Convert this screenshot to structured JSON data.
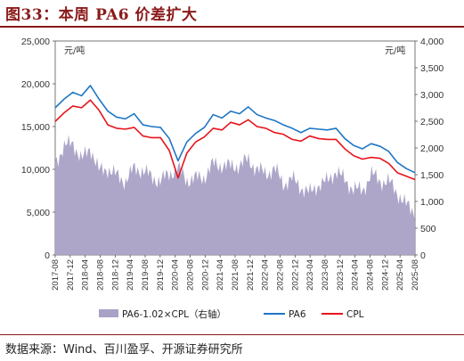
{
  "title": "图33：本周 PA6 价差扩大",
  "source": "数据来源：Wind、百川盈孚、开源证券研究所",
  "chart_data": {
    "type": "line",
    "left_unit": "元/吨",
    "right_unit": "元/吨",
    "left_ylim": [
      0,
      25000
    ],
    "right_ylim": [
      0,
      4000
    ],
    "left_ticks": [
      "0",
      "5,000",
      "10,000",
      "15,000",
      "20,000",
      "25,000"
    ],
    "right_ticks": [
      "0",
      "500",
      "1,000",
      "1,500",
      "2,000",
      "2,500",
      "3,000",
      "3,500",
      "4,000"
    ],
    "x_ticks": [
      "2017-08",
      "2017-12",
      "2018-04",
      "2018-08",
      "2018-12",
      "2019-04",
      "2019-08",
      "2019-12",
      "2020-04",
      "2020-08",
      "2020-12",
      "2021-04",
      "2021-08",
      "2021-12",
      "2022-04",
      "2022-08",
      "2022-12",
      "2023-04",
      "2023-08",
      "2023-12",
      "2024-04",
      "2024-08",
      "2024-12",
      "2025-04",
      "2025-08"
    ],
    "legend": [
      "PA6-1.02×CPL（右轴）",
      "PA6",
      "CPL"
    ],
    "colors": {
      "spread": "#a9a1c6",
      "pa6": "#1f77c4",
      "cpl": "#e8141c"
    },
    "series": [
      {
        "name": "PA6",
        "axis": "left",
        "values": [
          17200,
          18200,
          19000,
          18600,
          19800,
          18200,
          16800,
          16100,
          15900,
          16500,
          15200,
          15000,
          14900,
          13600,
          11000,
          13200,
          14200,
          14900,
          16400,
          16000,
          16800,
          16500,
          17300,
          16400,
          16000,
          15700,
          15200,
          14800,
          14300,
          14800,
          14700,
          14600,
          14800,
          13600,
          12800,
          12400,
          13000,
          12700,
          12100,
          10800,
          10100,
          9600
        ]
      },
      {
        "name": "CPL",
        "axis": "left",
        "values": [
          15600,
          16600,
          17400,
          17200,
          18100,
          16900,
          15200,
          14800,
          14700,
          14900,
          13900,
          13700,
          13700,
          12200,
          9000,
          11900,
          13200,
          13800,
          14800,
          14600,
          15500,
          15200,
          15800,
          15000,
          14800,
          14300,
          14100,
          13500,
          13300,
          13900,
          13600,
          13500,
          13500,
          12400,
          11600,
          11200,
          11400,
          11300,
          10700,
          9600,
          9200,
          8800
        ]
      },
      {
        "name": "PA6-1.02×CPL（右轴）",
        "axis": "right",
        "values": [
          1750,
          2000,
          2120,
          1760,
          2020,
          1560,
          1620,
          1480,
          1380,
          1620,
          1580,
          1450,
          1380,
          1520,
          1620,
          1400,
          1430,
          1460,
          1700,
          1680,
          1650,
          1680,
          1780,
          1600,
          1520,
          1610,
          1330,
          1420,
          1270,
          1150,
          1320,
          1370,
          1580,
          1390,
          1240,
          1190,
          1520,
          1380,
          1370,
          1160,
          930,
          800
        ]
      }
    ]
  }
}
